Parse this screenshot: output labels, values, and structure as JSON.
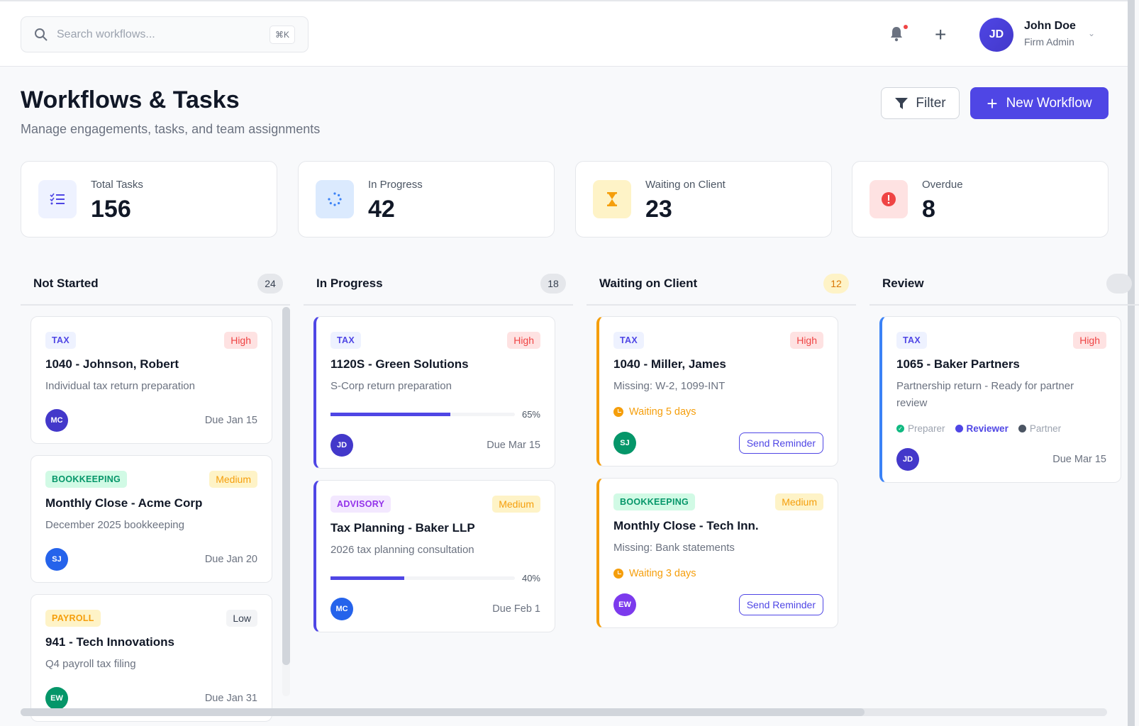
{
  "header": {
    "search_placeholder": "Search workflows...",
    "search_shortcut": "⌘K",
    "user": {
      "initials": "JD",
      "name": "John Doe",
      "role": "Firm Admin"
    }
  },
  "page": {
    "title": "Workflows & Tasks",
    "subtitle": "Manage engagements, tasks, and team assignments",
    "filter_label": "Filter",
    "new_workflow_label": "New Workflow"
  },
  "stats": [
    {
      "label": "Total Tasks",
      "value": "156",
      "icon": "checklist-icon",
      "icon_bg": "#EEF2FF",
      "icon_color": "#4F46E5"
    },
    {
      "label": "In Progress",
      "value": "42",
      "icon": "spinner-icon",
      "icon_bg": "#DBEAFE",
      "icon_color": "#3B82F6"
    },
    {
      "label": "Waiting on Client",
      "value": "23",
      "icon": "hourglass-icon",
      "icon_bg": "#FEF3C7",
      "icon_color": "#F59E0B"
    },
    {
      "label": "Overdue",
      "value": "8",
      "icon": "alert-circle-icon",
      "icon_bg": "#FEE2E2",
      "icon_color": "#EF4444"
    }
  ],
  "colors": {
    "accent": "#4F46E5",
    "in_progress_border": "#4F46E5",
    "waiting_border": "#F59E0B",
    "review_border": "#3B82F6"
  },
  "columns": [
    {
      "title": "Not Started",
      "count": "24",
      "count_bg": "#E5E7EB",
      "count_color": "#374151",
      "border": "",
      "cards": [
        {
          "tag": "TAX",
          "tag_type": "tax",
          "priority": "High",
          "title": "1040 - Johnson, Robert",
          "desc": "Individual tax return preparation",
          "avatar": "MC",
          "avatar_color": "#4338CA",
          "due": "Due Jan 15"
        },
        {
          "tag": "BOOKKEEPING",
          "tag_type": "bookkeeping",
          "priority": "Medium",
          "title": "Monthly Close - Acme Corp",
          "desc": "December 2025 bookkeeping",
          "avatar": "SJ",
          "avatar_color": "#2563EB",
          "due": "Due Jan 20"
        },
        {
          "tag": "PAYROLL",
          "tag_type": "payroll",
          "priority": "Low",
          "title": "941 - Tech Innovations",
          "desc": "Q4 payroll tax filing",
          "avatar": "EW",
          "avatar_color": "#059669",
          "due": "Due Jan 31"
        }
      ]
    },
    {
      "title": "In Progress",
      "count": "18",
      "count_bg": "#E5E7EB",
      "count_color": "#374151",
      "border": "#4F46E5",
      "cards": [
        {
          "tag": "TAX",
          "tag_type": "tax",
          "priority": "High",
          "title": "1120S - Green Solutions",
          "desc": "S-Corp return preparation",
          "progress": 65,
          "progress_label": "65%",
          "avatar": "JD",
          "avatar_color": "#4338CA",
          "due": "Due Mar 15"
        },
        {
          "tag": "ADVISORY",
          "tag_type": "advisory",
          "priority": "Medium",
          "title": "Tax Planning - Baker LLP",
          "desc": "2026 tax planning consultation",
          "progress": 40,
          "progress_label": "40%",
          "avatar": "MC",
          "avatar_color": "#2563EB",
          "due": "Due Feb 1"
        }
      ]
    },
    {
      "title": "Waiting on Client",
      "count": "12",
      "count_bg": "#FEF3C7",
      "count_color": "#D97706",
      "border": "#F59E0B",
      "cards": [
        {
          "tag": "TAX",
          "tag_type": "tax",
          "priority": "High",
          "title": "1040 - Miller, James",
          "desc": "Missing: W-2, 1099-INT",
          "waiting": "Waiting 5 days",
          "avatar": "SJ",
          "avatar_color": "#059669",
          "action": "Send Reminder"
        },
        {
          "tag": "BOOKKEEPING",
          "tag_type": "bookkeeping",
          "priority": "Medium",
          "title": "Monthly Close - Tech Inn.",
          "desc": "Missing: Bank statements",
          "waiting": "Waiting 3 days",
          "avatar": "EW",
          "avatar_color": "#7C3AED",
          "action": "Send Reminder"
        }
      ]
    },
    {
      "title": "Review",
      "count": "",
      "count_bg": "#E5E7EB",
      "count_color": "#374151",
      "border": "#3B82F6",
      "cards": [
        {
          "tag": "TAX",
          "tag_type": "tax",
          "priority": "High",
          "title": "1065 - Baker Partners",
          "desc": "Partnership return - Ready for partner review",
          "roles": [
            {
              "label": "Preparer",
              "state": "done"
            },
            {
              "label": "Reviewer",
              "state": "active"
            },
            {
              "label": "Partner",
              "state": "pending"
            }
          ],
          "avatar": "JD",
          "avatar_color": "#4338CA",
          "due": "Due Mar 15"
        }
      ]
    }
  ]
}
